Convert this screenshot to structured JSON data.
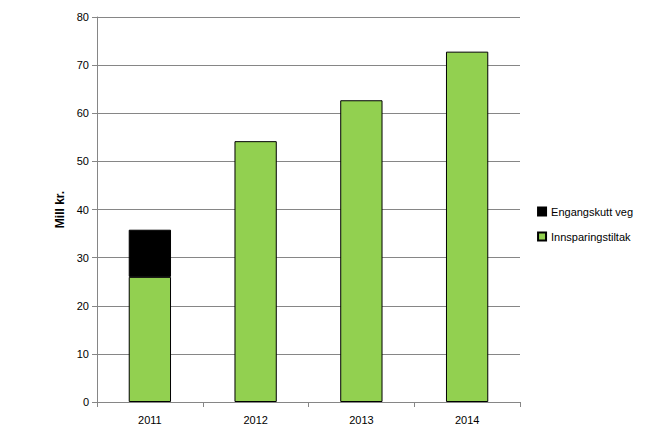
{
  "chart_data": {
    "type": "bar",
    "stacked": true,
    "ylabel": "Mill kr.",
    "categories": [
      "2011",
      "2012",
      "2013",
      "2014"
    ],
    "series": [
      {
        "name": "Innsparingstiltak",
        "color": "#92D050",
        "values": [
          26,
          54.2,
          62.7,
          72.8
        ]
      },
      {
        "name": "Engangskutt veg",
        "color": "#000000",
        "values": [
          9.8,
          null,
          null,
          null
        ]
      }
    ],
    "ylim": [
      0,
      80
    ],
    "yticks": [
      0,
      10,
      20,
      30,
      40,
      50,
      60,
      70,
      80
    ],
    "grid": true,
    "legend": "right"
  }
}
